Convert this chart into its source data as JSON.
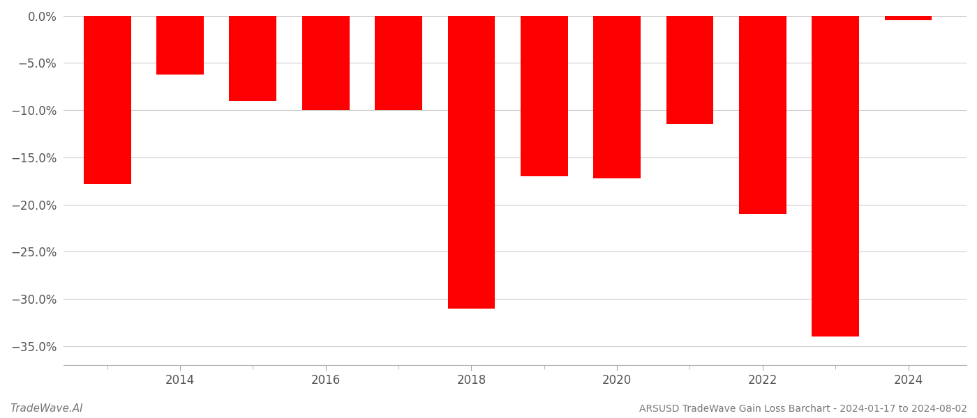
{
  "years": [
    2013,
    2014,
    2015,
    2016,
    2017,
    2018,
    2019,
    2020,
    2021,
    2022,
    2023,
    2024
  ],
  "values": [
    -0.178,
    -0.062,
    -0.09,
    -0.1,
    -0.1,
    -0.31,
    -0.17,
    -0.172,
    -0.115,
    -0.21,
    -0.34,
    -0.005
  ],
  "bar_color": "#ff0000",
  "ylim": [
    -0.37,
    0.005
  ],
  "yticks": [
    0.0,
    -0.05,
    -0.1,
    -0.15,
    -0.2,
    -0.25,
    -0.3,
    -0.35
  ],
  "ytick_labels": [
    "0.0%",
    "−5.0%",
    "−10.0%",
    "−15.0%",
    "−20.0%",
    "−25.0%",
    "−30.0%",
    "−35.0%"
  ],
  "xlabel": "",
  "ylabel": "",
  "title": "",
  "footer_left": "TradeWave.AI",
  "footer_right": "ARSUSD TradeWave Gain Loss Barchart - 2024-01-17 to 2024-08-02",
  "background_color": "#ffffff",
  "grid_color": "#cccccc",
  "bar_width": 0.65,
  "xtick_years": [
    2014,
    2016,
    2018,
    2020,
    2022,
    2024
  ],
  "xlim_left": 2012.4,
  "xlim_right": 2024.8
}
